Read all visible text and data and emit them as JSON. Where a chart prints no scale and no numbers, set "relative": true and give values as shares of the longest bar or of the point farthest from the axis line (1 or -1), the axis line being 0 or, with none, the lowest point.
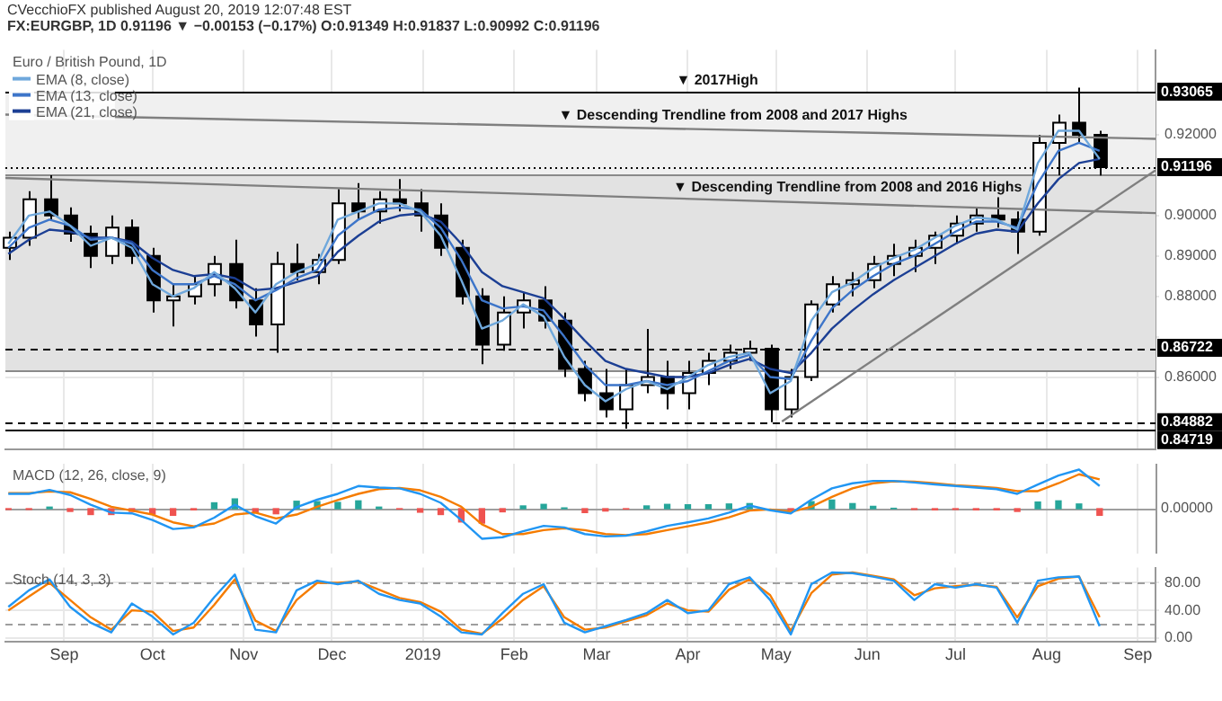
{
  "chart_data": [
    {
      "type": "candlestick",
      "title": "Euro / British Pound, 1D",
      "subtitle": "FX:EURGBP, 1D 0.91196 ▼ −0.00153 (−0.17%) O:0.91349 H:0.91837 L:0.90992 C:0.91196",
      "annotations": [
        "CVecchioFX published August 20, 2019 12:07:48 EST",
        {
          "text": "▼ 2017High",
          "x": "2019-03-28",
          "y": 0.93065
        },
        {
          "text": "▼ Descending Trendline from 2008 and 2017 Highs",
          "x": "2019-02-16",
          "y": 0.922
        },
        {
          "text": "▼ Descending Trendline from 2008 and 2016 Highs",
          "x": "2019-03-27",
          "y": 0.9042
        }
      ],
      "color": "#000000",
      "colors": [
        "#ffffff",
        "#ffffff",
        "#000000",
        "#000000",
        "#000000",
        "#ffffff",
        "#000000",
        "#000000",
        "#ffffff",
        "#ffffff",
        "#ffffff",
        "#000000",
        "#000000",
        "#ffffff",
        "#000000",
        "#ffffff",
        "#ffffff",
        "#000000",
        "#ffffff",
        "#000000",
        "#000000",
        "#000000",
        "#000000",
        "#000000",
        "#ffffff",
        "#ffffff",
        "#000000",
        "#000000",
        "#000000",
        "#000000",
        "#ffffff",
        "#ffffff",
        "#000000",
        "#ffffff",
        "#ffffff",
        "#ffffff",
        "#ffffff",
        "#000000",
        "#ffffff",
        "#ffffff",
        "#ffffff",
        "#ffffff",
        "#ffffff",
        "#ffffff",
        "#ffffff",
        "#ffffff",
        "#ffffff",
        "#ffffff",
        "#000000",
        "#000000",
        "#ffffff",
        "#ffffff",
        "#000000",
        "#000000"
      ],
      "x": [
        "2018-08-13",
        "2018-08-20",
        "2018-08-27",
        "2018-09-03",
        "2018-09-10",
        "2018-09-17",
        "2018-09-24",
        "2018-10-01",
        "2018-10-08",
        "2018-10-15",
        "2018-10-22",
        "2018-10-29",
        "2018-11-05",
        "2018-11-12",
        "2018-11-19",
        "2018-11-26",
        "2018-12-03",
        "2018-12-10",
        "2018-12-17",
        "2018-12-24",
        "2018-12-31",
        "2019-01-07",
        "2019-01-14",
        "2019-01-21",
        "2019-01-28",
        "2019-02-04",
        "2019-02-11",
        "2019-02-18",
        "2019-02-25",
        "2019-03-04",
        "2019-03-11",
        "2019-03-18",
        "2019-03-25",
        "2019-04-01",
        "2019-04-08",
        "2019-04-15",
        "2019-04-22",
        "2019-04-29",
        "2019-05-06",
        "2019-05-13",
        "2019-05-20",
        "2019-05-27",
        "2019-06-03",
        "2019-06-10",
        "2019-06-17",
        "2019-06-24",
        "2019-07-01",
        "2019-07-08",
        "2019-07-15",
        "2019-07-22",
        "2019-07-29",
        "2019-08-05",
        "2019-08-12",
        "2019-08-19"
      ],
      "ohlc": [
        [
          0.892,
          0.896,
          0.889,
          0.8945
        ],
        [
          0.8945,
          0.906,
          0.8925,
          0.904
        ],
        [
          0.904,
          0.91,
          0.899,
          0.9
        ],
        [
          0.9,
          0.902,
          0.8935,
          0.8955
        ],
        [
          0.8955,
          0.8975,
          0.887,
          0.89
        ],
        [
          0.89,
          0.9,
          0.888,
          0.897
        ],
        [
          0.897,
          0.899,
          0.888,
          0.89
        ],
        [
          0.89,
          0.892,
          0.876,
          0.879
        ],
        [
          0.879,
          0.883,
          0.8725,
          0.88
        ],
        [
          0.88,
          0.885,
          0.878,
          0.883
        ],
        [
          0.883,
          0.89,
          0.88,
          0.888
        ],
        [
          0.888,
          0.894,
          0.877,
          0.879
        ],
        [
          0.879,
          0.882,
          0.87,
          0.873
        ],
        [
          0.873,
          0.891,
          0.866,
          0.888
        ],
        [
          0.888,
          0.893,
          0.884,
          0.886
        ],
        [
          0.886,
          0.8905,
          0.883,
          0.889
        ],
        [
          0.889,
          0.9065,
          0.888,
          0.903
        ],
        [
          0.903,
          0.908,
          0.899,
          0.901
        ],
        [
          0.901,
          0.906,
          0.898,
          0.904
        ],
        [
          0.904,
          0.909,
          0.901,
          0.903
        ],
        [
          0.903,
          0.9065,
          0.896,
          0.9
        ],
        [
          0.9,
          0.903,
          0.89,
          0.892
        ],
        [
          0.892,
          0.894,
          0.878,
          0.88
        ],
        [
          0.88,
          0.882,
          0.8632,
          0.868
        ],
        [
          0.868,
          0.88,
          0.8665,
          0.876
        ],
        [
          0.876,
          0.881,
          0.872,
          0.879
        ],
        [
          0.879,
          0.8825,
          0.872,
          0.874
        ],
        [
          0.874,
          0.876,
          0.86,
          0.862
        ],
        [
          0.862,
          0.864,
          0.854,
          0.856
        ],
        [
          0.856,
          0.862,
          0.85,
          0.852
        ],
        [
          0.852,
          0.862,
          0.84719,
          0.858
        ],
        [
          0.858,
          0.8719,
          0.856,
          0.86
        ],
        [
          0.86,
          0.864,
          0.852,
          0.856
        ],
        [
          0.856,
          0.864,
          0.852,
          0.861
        ],
        [
          0.861,
          0.866,
          0.858,
          0.864
        ],
        [
          0.864,
          0.868,
          0.862,
          0.866
        ],
        [
          0.866,
          0.869,
          0.864,
          0.867
        ],
        [
          0.867,
          0.868,
          0.84882,
          0.852
        ],
        [
          0.852,
          0.862,
          0.85,
          0.86
        ],
        [
          0.86,
          0.879,
          0.859,
          0.878
        ],
        [
          0.878,
          0.885,
          0.876,
          0.883
        ],
        [
          0.883,
          0.886,
          0.88,
          0.884
        ],
        [
          0.884,
          0.89,
          0.882,
          0.888
        ],
        [
          0.888,
          0.893,
          0.885,
          0.89
        ],
        [
          0.89,
          0.894,
          0.886,
          0.892
        ],
        [
          0.892,
          0.896,
          0.888,
          0.895
        ],
        [
          0.895,
          0.9,
          0.893,
          0.898
        ],
        [
          0.898,
          0.902,
          0.896,
          0.9
        ],
        [
          0.9,
          0.9045,
          0.897,
          0.899
        ],
        [
          0.899,
          0.901,
          0.8905,
          0.896
        ],
        [
          0.896,
          0.92,
          0.895,
          0.918
        ],
        [
          0.918,
          0.925,
          0.91,
          0.923
        ],
        [
          0.923,
          0.9317,
          0.918,
          0.92
        ],
        [
          0.92,
          0.921,
          0.9099,
          0.91196
        ]
      ],
      "series": [
        {
          "type": "line",
          "name": "EMA (8, close)",
          "color": "#6fa8dc",
          "values": [
            0.893,
            0.9,
            0.901,
            0.8975,
            0.8925,
            0.8945,
            0.892,
            0.883,
            0.88,
            0.882,
            0.886,
            0.882,
            0.876,
            0.883,
            0.886,
            0.888,
            0.899,
            0.901,
            0.903,
            0.903,
            0.901,
            0.895,
            0.884,
            0.872,
            0.874,
            0.878,
            0.875,
            0.865,
            0.858,
            0.854,
            0.857,
            0.859,
            0.857,
            0.86,
            0.863,
            0.865,
            0.866,
            0.856,
            0.859,
            0.874,
            0.881,
            0.8835,
            0.887,
            0.8895,
            0.8915,
            0.8945,
            0.8975,
            0.8995,
            0.899,
            0.8965,
            0.913,
            0.921,
            0.921,
            0.914
          ]
        },
        {
          "type": "line",
          "name": "EMA (13, close)",
          "color": "#3d75c9",
          "values": [
            0.892,
            0.897,
            0.899,
            0.8975,
            0.894,
            0.8945,
            0.893,
            0.8865,
            0.883,
            0.883,
            0.885,
            0.883,
            0.879,
            0.8815,
            0.8845,
            0.8865,
            0.895,
            0.899,
            0.9015,
            0.902,
            0.9015,
            0.897,
            0.889,
            0.879,
            0.877,
            0.8775,
            0.8765,
            0.87,
            0.863,
            0.858,
            0.858,
            0.859,
            0.858,
            0.859,
            0.8615,
            0.864,
            0.8655,
            0.86,
            0.8595,
            0.869,
            0.877,
            0.8815,
            0.885,
            0.888,
            0.89,
            0.893,
            0.896,
            0.8985,
            0.8985,
            0.897,
            0.908,
            0.916,
            0.918,
            0.916
          ]
        },
        {
          "type": "line",
          "name": "EMA (21, close)",
          "color": "#1c3f94",
          "values": [
            0.8905,
            0.894,
            0.8965,
            0.896,
            0.8945,
            0.8945,
            0.8935,
            0.8895,
            0.8865,
            0.885,
            0.8855,
            0.8845,
            0.8815,
            0.882,
            0.8835,
            0.885,
            0.891,
            0.895,
            0.8985,
            0.9,
            0.9005,
            0.8985,
            0.893,
            0.886,
            0.8825,
            0.881,
            0.8795,
            0.8745,
            0.869,
            0.864,
            0.862,
            0.861,
            0.86,
            0.86,
            0.861,
            0.863,
            0.8645,
            0.862,
            0.861,
            0.866,
            0.872,
            0.8765,
            0.8805,
            0.884,
            0.887,
            0.89,
            0.893,
            0.8955,
            0.8965,
            0.896,
            0.903,
            0.909,
            0.913,
            0.914
          ]
        },
        {
          "type": "line",
          "color": "#7f7f7f",
          "x": [
            "2018-08-12",
            "2019-09-07"
          ],
          "values": [
            0.925,
            0.919
          ]
        },
        {
          "type": "line",
          "color": "#7f7f7f",
          "x": [
            "2018-08-12",
            "2019-09-07"
          ],
          "values": [
            0.9093,
            0.9006
          ]
        },
        {
          "type": "line",
          "color": "#7f7f7f",
          "x": [
            "2019-05-03",
            "2019-09-07"
          ],
          "values": [
            0.849,
            0.9112
          ]
        }
      ],
      "bands": [
        {
          "axis": "y",
          "from": 0.91,
          "to": 0.93065,
          "color": "#f0f0f0"
        },
        {
          "axis": "y",
          "from": 0.8617,
          "to": 0.91,
          "color": "#e2e2e2"
        }
      ],
      "ref_lines": [
        {
          "axis": "y",
          "value": 0.93065,
          "label": "0.93065",
          "color": "#000000"
        },
        {
          "axis": "y",
          "value": 0.91196,
          "label": "0.91196",
          "color": "#000000",
          "line_style": "dotted"
        },
        {
          "axis": "y",
          "value": 0.86722,
          "label": "0.86722",
          "color": "#000000",
          "line_style": "dashed"
        },
        {
          "axis": "y",
          "value": 0.84882,
          "label": "0.84882",
          "color": "#000000",
          "line_style": "dashed"
        },
        {
          "axis": "y",
          "value": 0.84719,
          "label": "0.84719",
          "color": "#000000"
        },
        {
          "axis": "y",
          "value": 0.91,
          "color": "#8a8a8a"
        },
        {
          "axis": "y",
          "value": 0.8617,
          "color": "#8a8a8a"
        }
      ],
      "xlim": [
        "2018-08-12",
        "2019-09-07"
      ],
      "xticks": [
        {
          "value": "2018-09-01",
          "label": null
        },
        {
          "value": "2018-10-01",
          "label": null
        },
        {
          "value": "2018-11-01",
          "label": null
        },
        {
          "value": "2018-12-01",
          "label": null
        },
        {
          "value": "2019-01-01",
          "label": null
        },
        {
          "value": "2019-02-01",
          "label": null
        },
        {
          "value": "2019-03-01",
          "label": null
        },
        {
          "value": "2019-04-01",
          "label": null
        },
        {
          "value": "2019-05-01",
          "label": null
        },
        {
          "value": "2019-06-01",
          "label": null
        },
        {
          "value": "2019-07-01",
          "label": null
        },
        {
          "value": "2019-08-01",
          "label": null
        },
        {
          "value": "2019-09-01",
          "label": null
        }
      ],
      "ylim": [
        0.842,
        0.941
      ],
      "yticks": [
        {
          "value": 0.86,
          "label": "0.86000"
        },
        {
          "value": 0.87,
          "label": null
        },
        {
          "value": 0.88,
          "label": "0.88000"
        },
        {
          "value": 0.89,
          "label": "0.89000"
        },
        {
          "value": 0.9,
          "label": "0.90000"
        },
        {
          "value": 0.91,
          "label": null
        },
        {
          "value": 0.92,
          "label": "0.92000"
        }
      ],
      "grid": true,
      "legend": "top left",
      "marker": "none",
      "tick_labels": "y"
    },
    {
      "type": "line",
      "title": "MACD (12, 26, close, 9)",
      "relative": true,
      "x": [
        "2018-08-13",
        "2018-08-20",
        "2018-08-27",
        "2018-09-03",
        "2018-09-10",
        "2018-09-17",
        "2018-09-24",
        "2018-10-01",
        "2018-10-08",
        "2018-10-15",
        "2018-10-22",
        "2018-10-29",
        "2018-11-05",
        "2018-11-12",
        "2018-11-19",
        "2018-11-26",
        "2018-12-03",
        "2018-12-10",
        "2018-12-17",
        "2018-12-24",
        "2018-12-31",
        "2019-01-07",
        "2019-01-14",
        "2019-01-21",
        "2019-01-28",
        "2019-02-04",
        "2019-02-11",
        "2019-02-18",
        "2019-02-25",
        "2019-03-04",
        "2019-03-11",
        "2019-03-18",
        "2019-03-25",
        "2019-04-01",
        "2019-04-08",
        "2019-04-15",
        "2019-04-22",
        "2019-04-29",
        "2019-05-06",
        "2019-05-13",
        "2019-05-20",
        "2019-05-27",
        "2019-06-03",
        "2019-06-10",
        "2019-06-17",
        "2019-06-24",
        "2019-07-01",
        "2019-07-08",
        "2019-07-15",
        "2019-07-22",
        "2019-07-29",
        "2019-08-05",
        "2019-08-12",
        "2019-08-19"
      ],
      "series": [
        {
          "type": "bar",
          "colors": [
            "#ef5350",
            "#ef5350",
            "#26a69a",
            "#ef5350",
            "#ef5350",
            "#ef5350",
            "#ef5350",
            "#ef5350",
            "#ef5350",
            "#ef5350",
            "#26a69a",
            "#26a69a",
            "#ef5350",
            "#ef5350",
            "#26a69a",
            "#26a69a",
            "#26a69a",
            "#26a69a",
            "#26a69a",
            "#ef5350",
            "#ef5350",
            "#ef5350",
            "#ef5350",
            "#ef5350",
            "#ef5350",
            "#26a69a",
            "#26a69a",
            "#26a69a",
            "#ef5350",
            "#ef5350",
            "#ef5350",
            "#26a69a",
            "#26a69a",
            "#26a69a",
            "#26a69a",
            "#26a69a",
            "#26a69a",
            "#ef5350",
            "#ef5350",
            "#26a69a",
            "#26a69a",
            "#26a69a",
            "#26a69a",
            "#26a69a",
            "#ef5350",
            "#ef5350",
            "#ef5350",
            "#ef5350",
            "#ef5350",
            "#ef5350",
            "#26a69a",
            "#26a69a",
            "#26a69a",
            "#ef5350"
          ],
          "values": [
            -0.02,
            -0.02,
            0.04,
            -0.07,
            -0.15,
            -0.15,
            -0.07,
            -0.14,
            -0.17,
            -0.03,
            0.15,
            0.25,
            -0.09,
            -0.13,
            0.19,
            0.18,
            0.16,
            0.2,
            0.04,
            -0.01,
            -0.09,
            -0.15,
            -0.34,
            -0.37,
            -0.08,
            0.07,
            0.11,
            0.02,
            -0.1,
            -0.06,
            -0.01,
            0.07,
            0.11,
            0.1,
            0.1,
            0.12,
            0.13,
            null,
            -0.04,
            0.18,
            0.22,
            0.13,
            0.06,
            0.01,
            -0.02,
            -0.03,
            -0.02,
            -0.03,
            -0.03,
            -0.07,
            0.17,
            0.2,
            0.12,
            -0.17
          ]
        },
        {
          "type": "line",
          "color": "#2196f3",
          "values": [
            0.38,
            0.38,
            0.48,
            0.35,
            0.1,
            -0.1,
            -0.12,
            -0.29,
            -0.52,
            -0.48,
            -0.23,
            0.1,
            -0.19,
            -0.38,
            0.04,
            0.23,
            0.38,
            0.58,
            0.54,
            0.52,
            0.38,
            0.15,
            -0.29,
            -0.77,
            -0.73,
            -0.58,
            -0.44,
            -0.48,
            -0.65,
            -0.71,
            -0.69,
            -0.58,
            -0.44,
            -0.35,
            -0.25,
            -0.1,
            0.08,
            -0.04,
            -0.12,
            0.23,
            0.52,
            0.65,
            0.71,
            0.71,
            0.67,
            0.62,
            0.58,
            0.54,
            0.5,
            0.38,
            0.62,
            0.85,
            1,
            0.58
          ]
        },
        {
          "type": "line",
          "color": "#f57c00",
          "values": [
            0.4,
            0.4,
            0.44,
            0.42,
            0.25,
            0.05,
            -0.05,
            -0.15,
            -0.35,
            -0.45,
            -0.38,
            -0.15,
            -0.1,
            -0.25,
            -0.15,
            0.05,
            0.22,
            0.38,
            0.5,
            0.53,
            0.47,
            0.3,
            0.05,
            -0.4,
            -0.65,
            -0.65,
            -0.55,
            -0.5,
            -0.55,
            -0.65,
            -0.68,
            -0.65,
            -0.55,
            -0.45,
            -0.35,
            -0.22,
            -0.05,
            -0.02,
            -0.08,
            0.05,
            0.3,
            0.52,
            0.65,
            0.7,
            0.69,
            0.65,
            0.6,
            0.57,
            0.53,
            0.45,
            0.45,
            0.65,
            0.88,
            0.75
          ]
        }
      ],
      "ref_lines": [
        {
          "axis": "y",
          "value": 0,
          "label": "0.00000",
          "line_style": "solid"
        }
      ],
      "xlim": [
        "2018-08-12",
        "2019-09-07"
      ],
      "xticks": [
        {
          "value": "2018-09-01",
          "label": null
        },
        {
          "value": "2018-10-01",
          "label": null
        },
        {
          "value": "2018-11-01",
          "label": null
        },
        {
          "value": "2018-12-01",
          "label": null
        },
        {
          "value": "2019-01-01",
          "label": null
        },
        {
          "value": "2019-02-01",
          "label": null
        },
        {
          "value": "2019-03-01",
          "label": null
        },
        {
          "value": "2019-04-01",
          "label": null
        },
        {
          "value": "2019-05-01",
          "label": null
        },
        {
          "value": "2019-06-01",
          "label": null
        },
        {
          "value": "2019-07-01",
          "label": null
        },
        {
          "value": "2019-08-01",
          "label": null
        },
        {
          "value": "2019-09-01",
          "label": null
        }
      ],
      "grid": "x",
      "marker": "none",
      "tick_labels": false
    },
    {
      "type": "line",
      "title": "Stoch (14, 3, 3)",
      "x": [
        "2018-08-13",
        "2018-08-20",
        "2018-08-27",
        "2018-09-03",
        "2018-09-10",
        "2018-09-17",
        "2018-09-24",
        "2018-10-01",
        "2018-10-08",
        "2018-10-15",
        "2018-10-22",
        "2018-10-29",
        "2018-11-05",
        "2018-11-12",
        "2018-11-19",
        "2018-11-26",
        "2018-12-03",
        "2018-12-10",
        "2018-12-17",
        "2018-12-24",
        "2018-12-31",
        "2019-01-07",
        "2019-01-14",
        "2019-01-21",
        "2019-01-28",
        "2019-02-04",
        "2019-02-11",
        "2019-02-18",
        "2019-02-25",
        "2019-03-04",
        "2019-03-11",
        "2019-03-18",
        "2019-03-25",
        "2019-04-01",
        "2019-04-08",
        "2019-04-15",
        "2019-04-22",
        "2019-04-29",
        "2019-05-06",
        "2019-05-13",
        "2019-05-20",
        "2019-05-27",
        "2019-06-03",
        "2019-06-10",
        "2019-06-17",
        "2019-06-24",
        "2019-07-01",
        "2019-07-08",
        "2019-07-15",
        "2019-07-22",
        "2019-07-29",
        "2019-08-05",
        "2019-08-12",
        "2019-08-19"
      ],
      "series": [
        {
          "type": "line",
          "color": "#2196f3",
          "values": [
            45,
            69,
            85,
            45,
            22,
            8,
            50,
            31,
            5,
            22,
            59,
            92,
            12,
            8,
            69,
            83,
            78,
            83,
            64,
            55,
            50,
            31,
            8,
            5,
            36,
            64,
            78,
            22,
            8,
            17,
            26,
            36,
            55,
            36,
            40,
            78,
            88,
            55,
            5,
            78,
            95,
            94,
            89,
            83,
            55,
            78,
            73,
            78,
            73,
            22,
            83,
            88,
            89,
            17
          ]
        },
        {
          "type": "line",
          "color": "#f57c00",
          "values": [
            40,
            60,
            80,
            55,
            30,
            12,
            40,
            38,
            10,
            15,
            48,
            85,
            25,
            10,
            55,
            80,
            80,
            82,
            70,
            58,
            52,
            38,
            12,
            6,
            28,
            55,
            75,
            30,
            12,
            15,
            24,
            33,
            50,
            40,
            38,
            70,
            85,
            62,
            10,
            65,
            92,
            95,
            90,
            85,
            62,
            72,
            75,
            77,
            74,
            30,
            75,
            86,
            89,
            30
          ]
        }
      ],
      "ref_lines": [
        {
          "axis": "y",
          "value": 80,
          "line_style": "dashed"
        },
        {
          "axis": "y",
          "value": 20,
          "line_style": "dashed"
        }
      ],
      "xlim": [
        "2018-08-12",
        "2019-09-07"
      ],
      "xticks": [
        {
          "value": "2018-09-01",
          "label": "Sep"
        },
        {
          "value": "2018-10-01",
          "label": "Oct"
        },
        {
          "value": "2018-11-01",
          "label": "Nov"
        },
        {
          "value": "2018-12-01",
          "label": "Dec"
        },
        {
          "value": "2019-01-01",
          "label": "2019"
        },
        {
          "value": "2019-02-01",
          "label": "Feb"
        },
        {
          "value": "2019-03-01",
          "label": "Mar"
        },
        {
          "value": "2019-04-01",
          "label": "Apr"
        },
        {
          "value": "2019-05-01",
          "label": "May"
        },
        {
          "value": "2019-06-01",
          "label": "Jun"
        },
        {
          "value": "2019-07-01",
          "label": "Jul"
        },
        {
          "value": "2019-08-01",
          "label": "Aug"
        },
        {
          "value": "2019-09-01",
          "label": "Sep"
        }
      ],
      "ylim": [
        -6,
        102
      ],
      "yticks": [
        {
          "value": 0,
          "label": "0.00"
        },
        {
          "value": 40,
          "label": "40.00"
        },
        {
          "value": 80,
          "label": "80.00"
        }
      ],
      "grid": true,
      "marker": "none"
    }
  ]
}
